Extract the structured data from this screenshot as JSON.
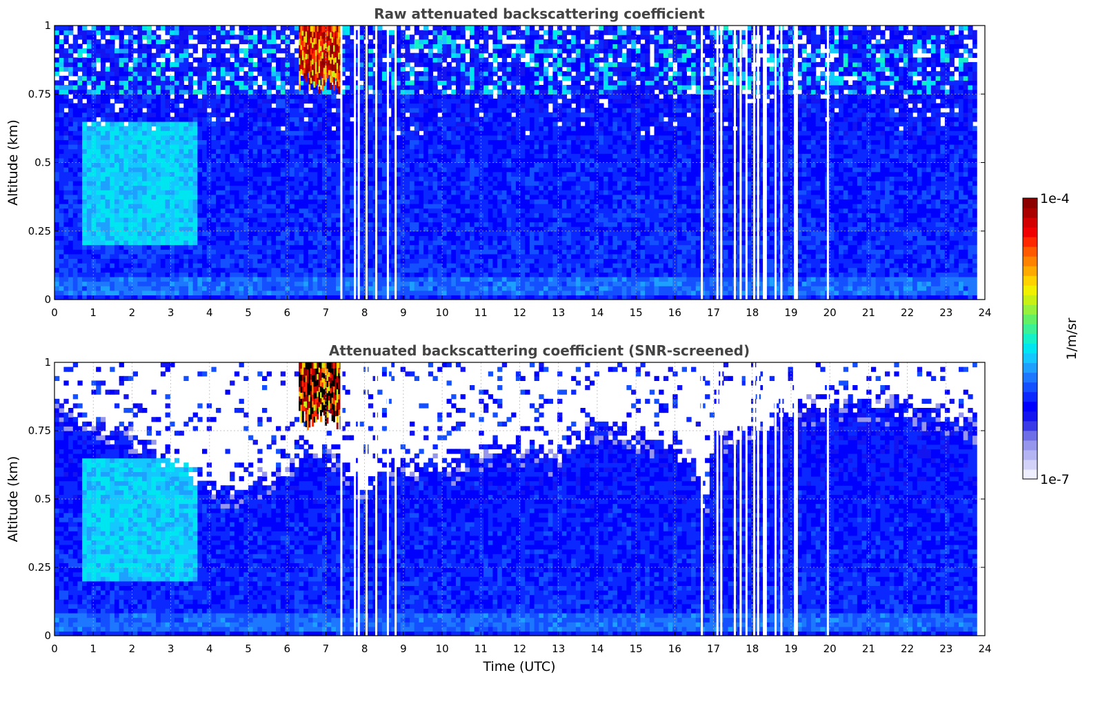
{
  "colorbar": {
    "label": "1/m/sr",
    "max_label": "1e-4",
    "min_label": "1e-7",
    "colors": [
      "#eeeeff",
      "#d2d2f8",
      "#b4b4f2",
      "#9696ec",
      "#6e6ee6",
      "#3a3ae8",
      "#1414f0",
      "#0000ff",
      "#0a28ff",
      "#1450ff",
      "#1e78ff",
      "#1ea0ff",
      "#14c8ff",
      "#00e6f0",
      "#14f0c8",
      "#3cf096",
      "#64f064",
      "#96f03c",
      "#c8f014",
      "#f0f000",
      "#ffd200",
      "#ffaa00",
      "#ff8200",
      "#ff5a00",
      "#ff2800",
      "#f00000",
      "#d20000",
      "#aa0000",
      "#8c0000"
    ]
  },
  "chart_data": [
    {
      "type": "heatmap",
      "title": "Raw attenuated backscattering coefficient",
      "xlabel": "",
      "ylabel": "Altitude (km)",
      "xlim": [
        0,
        24
      ],
      "ylim": [
        0,
        1
      ],
      "xticks": [
        "0",
        "1",
        "2",
        "3",
        "4",
        "5",
        "6",
        "7",
        "8",
        "9",
        "10",
        "11",
        "12",
        "13",
        "14",
        "15",
        "16",
        "17",
        "18",
        "19",
        "20",
        "21",
        "22",
        "23",
        "24"
      ],
      "yticks": [
        "0",
        "0.25",
        "0.5",
        "0.75",
        "1"
      ],
      "grid": true,
      "data_end_hour": 23.8,
      "screened": false,
      "features": [
        {
          "kind": "aerosol_plume",
          "t_start": 0.7,
          "t_end": 3.7,
          "alt_low": 0.2,
          "alt_high": 0.65
        },
        {
          "kind": "high_backscatter_cloud",
          "t_start": 6.3,
          "t_end": 7.4,
          "alt_low": 0.75,
          "alt_high": 1.0
        }
      ],
      "missing_profiles_hours": [
        7.4,
        7.75,
        7.85,
        8.05,
        8.3,
        8.6,
        8.8,
        16.7,
        17.1,
        17.2,
        17.55,
        17.7,
        17.85,
        18.05,
        18.15,
        18.3,
        18.35,
        18.6,
        18.75,
        19.1,
        19.15,
        19.95
      ]
    },
    {
      "type": "heatmap",
      "title": "Attenuated backscattering coefficient (SNR-screened)",
      "xlabel": "Time (UTC)",
      "ylabel": "Altitude (km)",
      "xlim": [
        0,
        24
      ],
      "ylim": [
        0,
        1
      ],
      "xticks": [
        "0",
        "1",
        "2",
        "3",
        "4",
        "5",
        "6",
        "7",
        "8",
        "9",
        "10",
        "11",
        "12",
        "13",
        "14",
        "15",
        "16",
        "17",
        "18",
        "19",
        "20",
        "21",
        "22",
        "23",
        "24"
      ],
      "yticks": [
        "0",
        "0.25",
        "0.5",
        "0.75",
        "1"
      ],
      "grid": true,
      "data_end_hour": 23.8,
      "screened": true,
      "screen_top_km": {
        "hours": [
          0,
          0.5,
          1,
          2,
          3,
          3.5,
          4,
          4.5,
          5,
          6,
          6.5,
          7,
          7.5,
          8,
          8.5,
          9,
          10,
          11,
          12,
          13,
          14,
          15,
          16,
          16.5,
          16.8,
          17,
          18,
          19,
          20,
          21,
          22,
          23,
          23.8
        ],
        "altitudes": [
          0.88,
          0.8,
          0.78,
          0.72,
          0.65,
          0.6,
          0.56,
          0.54,
          0.56,
          0.6,
          0.68,
          0.66,
          0.62,
          0.55,
          0.62,
          0.64,
          0.62,
          0.68,
          0.7,
          0.66,
          0.78,
          0.72,
          0.7,
          0.62,
          0.46,
          0.72,
          0.76,
          0.82,
          0.86,
          0.86,
          0.84,
          0.82,
          0.78
        ]
      },
      "features": [
        {
          "kind": "aerosol_plume",
          "t_start": 0.7,
          "t_end": 3.7,
          "alt_low": 0.2,
          "alt_high": 0.65
        },
        {
          "kind": "high_backscatter_cloud",
          "t_start": 6.3,
          "t_end": 7.4,
          "alt_low": 0.75,
          "alt_high": 1.0
        }
      ],
      "missing_profiles_hours": [
        7.4,
        7.75,
        7.85,
        8.05,
        8.3,
        8.6,
        8.8,
        16.7,
        17.1,
        17.2,
        17.55,
        17.7,
        17.85,
        18.05,
        18.15,
        18.3,
        18.35,
        18.6,
        18.75,
        19.1,
        19.15,
        19.95
      ]
    }
  ]
}
